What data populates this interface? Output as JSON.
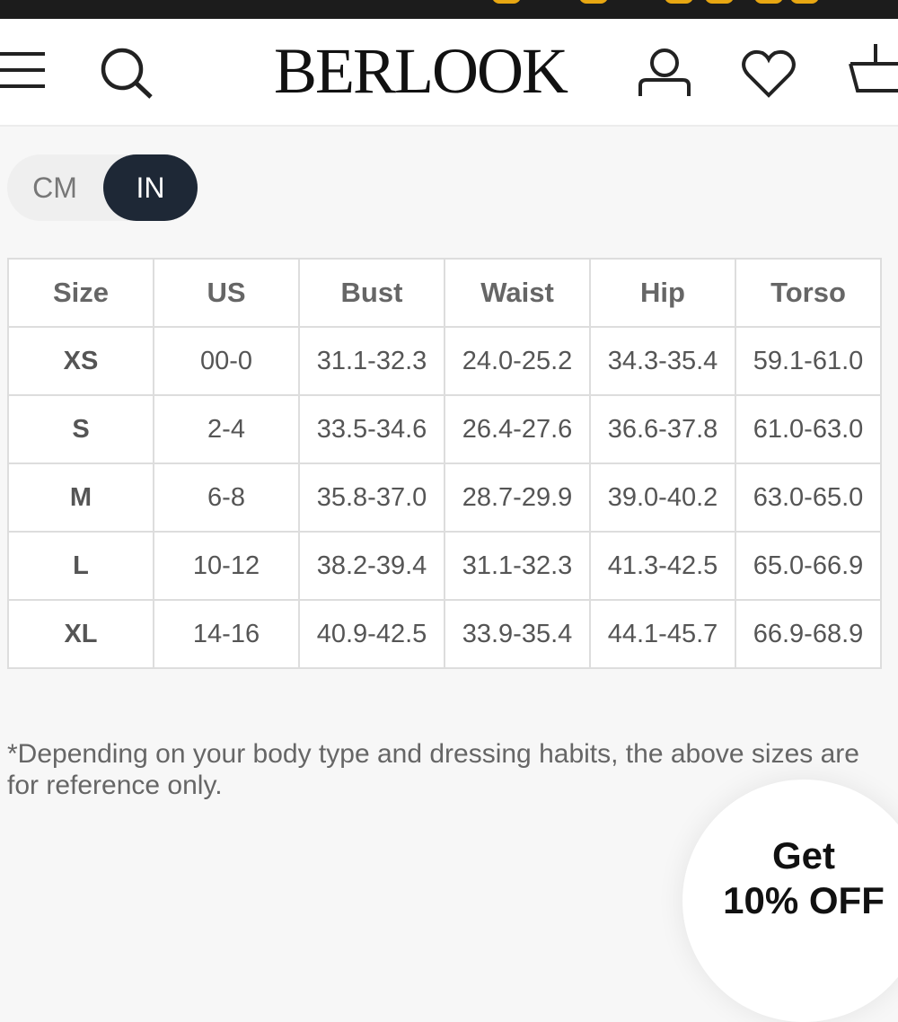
{
  "header": {
    "logo": "BERLOOK"
  },
  "units": {
    "options": [
      "CM",
      "IN"
    ],
    "selected": "IN"
  },
  "table": {
    "headers": [
      "Size",
      "US",
      "Bust",
      "Waist",
      "Hip",
      "Torso"
    ],
    "rows": [
      [
        "XS",
        "00-0",
        "31.1-32.3",
        "24.0-25.2",
        "34.3-35.4",
        "59.1-61.0"
      ],
      [
        "S",
        "2-4",
        "33.5-34.6",
        "26.4-27.6",
        "36.6-37.8",
        "61.0-63.0"
      ],
      [
        "M",
        "6-8",
        "35.8-37.0",
        "28.7-29.9",
        "39.0-40.2",
        "63.0-65.0"
      ],
      [
        "L",
        "10-12",
        "38.2-39.4",
        "31.1-32.3",
        "41.3-42.5",
        "65.0-66.9"
      ],
      [
        "XL",
        "14-16",
        "40.9-42.5",
        "33.9-35.4",
        "44.1-45.7",
        "66.9-68.9"
      ]
    ]
  },
  "note": "*Depending on your body type and dressing habits, the above sizes are for reference only.",
  "promo": {
    "line1": "Get",
    "line2": "10% OFF"
  },
  "colors": {
    "toggle_active": "#1e2836",
    "topbar": "#1c1c1c",
    "dots": "#e8a712"
  }
}
